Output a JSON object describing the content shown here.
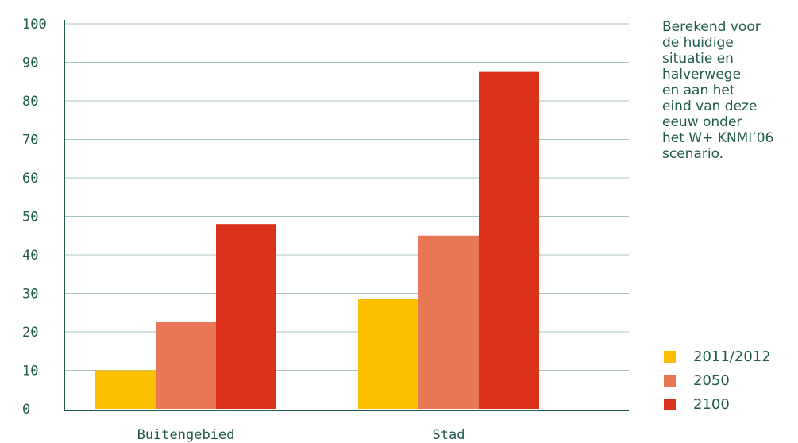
{
  "chart_data": {
    "type": "bar",
    "categories": [
      "Buitengebied",
      "Stad"
    ],
    "series": [
      {
        "name": "2011/2012",
        "values": [
          10,
          28.5
        ],
        "color": "#fbbf00"
      },
      {
        "name": "2050",
        "values": [
          22.5,
          45
        ],
        "color": "#e87755"
      },
      {
        "name": "2100",
        "values": [
          48,
          87.5
        ],
        "color": "#dc321c"
      }
    ],
    "title": "",
    "xlabel": "",
    "ylabel": "",
    "ylim": [
      0,
      100
    ],
    "yticks": [
      "0",
      "10",
      "20",
      "30",
      "40",
      "50",
      "60",
      "70",
      "80",
      "90",
      "100"
    ],
    "grid": true,
    "legend_position": "bottom-right"
  },
  "annotation": "Berekend voor\nde huidige\nsituatie en\nhalverwege\nen aan het\neind van deze\neeuw onder\nhet W+ KNMI’06\nscenario."
}
